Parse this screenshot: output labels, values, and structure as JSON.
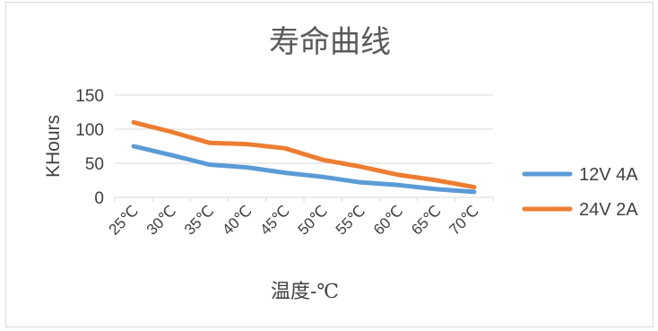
{
  "chart_data": {
    "type": "line",
    "title": "寿命曲线",
    "xlabel": "温度-℃",
    "ylabel": "KHours",
    "categories": [
      "25℃",
      "30℃",
      "35℃",
      "40℃",
      "45℃",
      "50℃",
      "55℃",
      "60℃",
      "65℃",
      "70℃"
    ],
    "ylim": [
      0,
      150
    ],
    "yticks": [
      "0",
      "50",
      "100",
      "150"
    ],
    "grid": true,
    "legend_position": "right",
    "series": [
      {
        "name": "12V 4A",
        "color": "#5b9bd5",
        "values": [
          75,
          62,
          48,
          44,
          36,
          30,
          22,
          18,
          12,
          8
        ]
      },
      {
        "name": "24V 2A",
        "color": "#ed7d31",
        "values": [
          110,
          96,
          80,
          78,
          72,
          55,
          45,
          33,
          25,
          15
        ]
      }
    ]
  }
}
